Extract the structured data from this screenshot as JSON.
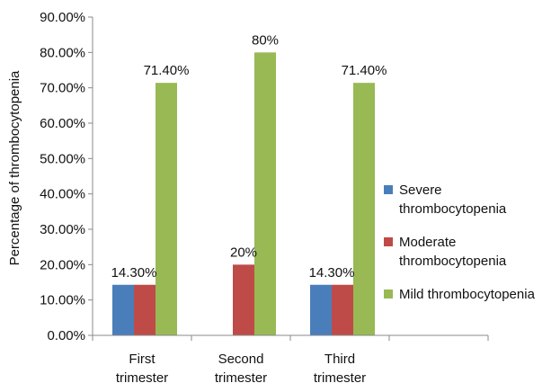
{
  "chart_data": {
    "type": "bar",
    "title": "",
    "xlabel": "",
    "ylabel": "Percentage of thrombocytopenia",
    "ylim": [
      0,
      90
    ],
    "y_ticks": [
      "0.00%",
      "10.00%",
      "20.00%",
      "30.00%",
      "40.00%",
      "50.00%",
      "60.00%",
      "70.00%",
      "80.00%",
      "90.00%"
    ],
    "categories": [
      [
        "First",
        "trimester"
      ],
      [
        "Second",
        "trimester"
      ],
      [
        "Third",
        "trimester"
      ]
    ],
    "grid": false,
    "legend_position": "right",
    "series": [
      {
        "name": "Severe thrombocytopenia",
        "legend_lines": [
          "Severe",
          "thrombocytopenia"
        ],
        "color": "#4a7ebb",
        "values": [
          14.3,
          null,
          14.3
        ],
        "labels": [
          "14.30%",
          "",
          "14.30%"
        ]
      },
      {
        "name": "Moderate thrombocytopenia",
        "legend_lines": [
          "Moderate",
          "thrombocytopenia"
        ],
        "color": "#be4b48",
        "values": [
          14.3,
          20,
          14.3
        ],
        "labels": [
          "",
          "20%",
          ""
        ]
      },
      {
        "name": "Mild thrombocytopenia",
        "legend_lines": [
          "Mild thrombocytopenia"
        ],
        "color": "#98b954",
        "values": [
          71.4,
          80,
          71.4
        ],
        "labels": [
          "71.40%",
          "80%",
          "71.40%"
        ]
      }
    ]
  }
}
